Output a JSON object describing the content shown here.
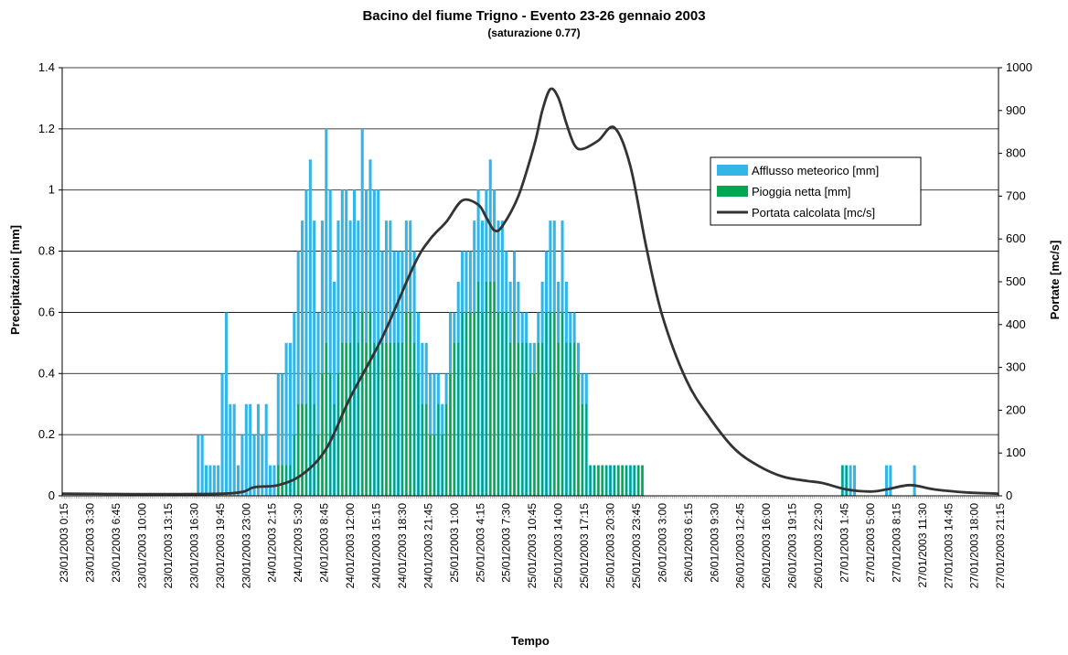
{
  "chart_data": {
    "type": "bar",
    "title": "Bacino del fiume Trigno - Evento 23-26 gennaio 2003",
    "subtitle": "(saturazione 0.77)",
    "xlabel": "Tempo",
    "ylabel_left": "Precipitazioni [mm]",
    "ylabel_right": "Portate [mc/s]",
    "ylim_left": [
      0,
      1.4
    ],
    "yticks_left": [
      "0",
      "0.2",
      "0.4",
      "0.6",
      "0.8",
      "1",
      "1.2",
      "1.4"
    ],
    "ylim_right": [
      0,
      1000
    ],
    "yticks_right": [
      "0",
      "100",
      "200",
      "300",
      "400",
      "500",
      "600",
      "700",
      "800",
      "900",
      "1000"
    ],
    "xlim_hours": [
      0,
      117
    ],
    "x_tick_labels": [
      "23/01/2003 0:15",
      "23/01/2003 3:30",
      "23/01/2003 6:45",
      "23/01/2003 10:00",
      "23/01/2003 13:15",
      "23/01/2003 16:30",
      "23/01/2003 19:45",
      "23/01/2003 23:00",
      "24/01/2003 2:15",
      "24/01/2003 5:30",
      "24/01/2003 8:45",
      "24/01/2003 12:00",
      "24/01/2003 15:15",
      "24/01/2003 18:30",
      "24/01/2003 21:45",
      "25/01/2003 1:00",
      "25/01/2003 4:15",
      "25/01/2003 7:30",
      "25/01/2003 10:45",
      "25/01/2003 14:00",
      "25/01/2003 17:15",
      "25/01/2003 20:30",
      "25/01/2003 23:45",
      "26/01/2003 3:00",
      "26/01/2003 6:15",
      "26/01/2003 9:30",
      "26/01/2003 12:45",
      "26/01/2003 16:00",
      "26/01/2003 19:15",
      "26/01/2003 22:30",
      "27/01/2003 1:45",
      "27/01/2003 5:00",
      "27/01/2003 8:15",
      "27/01/2003 11:30",
      "27/01/2003 14:45",
      "27/01/2003 18:00",
      "27/01/2003 21:15"
    ],
    "grid": true,
    "legend_position": "right",
    "colors": {
      "afflusso": "#33b5e5",
      "pioggia": "#00a651",
      "portata": "#333333",
      "grid": "#000000"
    },
    "series": [
      {
        "name": "Afflusso meteorico [mm]",
        "type": "bar",
        "axis": "left",
        "x_hours": [
          17,
          17.5,
          18,
          18.5,
          19,
          19.5,
          20,
          20.5,
          21,
          21.5,
          22,
          22.5,
          23,
          23.5,
          24,
          24.5,
          25,
          25.5,
          26,
          26.5,
          27,
          27.5,
          28,
          28.5,
          29,
          29.5,
          30,
          30.5,
          31,
          31.5,
          32,
          32.5,
          33,
          33.5,
          34,
          34.5,
          35,
          35.5,
          36,
          36.5,
          37,
          37.5,
          38,
          38.5,
          39,
          39.5,
          40,
          40.5,
          41,
          41.5,
          42,
          42.5,
          43,
          43.5,
          44,
          44.5,
          45,
          45.5,
          46,
          46.5,
          47,
          47.5,
          48,
          48.5,
          49,
          49.5,
          50,
          50.5,
          51,
          51.5,
          52,
          52.5,
          53,
          53.5,
          54,
          54.5,
          55,
          55.5,
          56,
          56.5,
          57,
          57.5,
          58,
          58.5,
          59,
          59.5,
          60,
          60.5,
          61,
          61.5,
          62,
          62.5,
          63,
          63.5,
          64,
          64.5,
          65,
          65.5,
          66,
          66.5,
          67,
          67.5,
          68,
          68.5,
          69,
          69.5,
          70,
          70.5,
          71,
          71.5,
          72,
          72.5,
          97.5,
          98,
          98.5,
          99,
          103,
          103.5,
          106.5
        ],
        "values": [
          0.2,
          0.2,
          0.1,
          0.1,
          0.1,
          0.1,
          0.4,
          0.6,
          0.3,
          0.3,
          0.1,
          0.2,
          0.3,
          0.3,
          0.2,
          0.3,
          0.2,
          0.3,
          0.1,
          0.1,
          0.4,
          0.4,
          0.5,
          0.5,
          0.6,
          0.8,
          0.9,
          1,
          1.1,
          0.9,
          0.6,
          0.9,
          1.2,
          1,
          0.7,
          0.9,
          1,
          1,
          0.9,
          1,
          0.9,
          1.2,
          1,
          1.1,
          1,
          1,
          0.8,
          0.9,
          0.9,
          0.8,
          0.8,
          0.8,
          0.9,
          0.9,
          0.8,
          0.6,
          0.5,
          0.5,
          0.4,
          0.4,
          0.4,
          0.3,
          0.4,
          0.6,
          0.6,
          0.7,
          0.8,
          0.8,
          0.8,
          0.9,
          1,
          0.9,
          1,
          1.1,
          1,
          0.9,
          0.9,
          0.8,
          0.7,
          0.8,
          0.7,
          0.6,
          0.6,
          0.5,
          0.5,
          0.6,
          0.7,
          0.8,
          0.9,
          0.9,
          0.7,
          0.9,
          0.7,
          0.6,
          0.6,
          0.5,
          0.4,
          0.4,
          0.1,
          0.1,
          0.1,
          0.1,
          0.1,
          0.1,
          0.1,
          0.1,
          0.1,
          0.1,
          0.1,
          0.1,
          0.1,
          0.1,
          0.1,
          0.1,
          0.1,
          0.1,
          0.1,
          0.1,
          0.1
        ]
      },
      {
        "name": "Pioggia netta [mm]",
        "type": "bar",
        "axis": "left",
        "x_hours": [
          17,
          17.5,
          18,
          18.5,
          19,
          19.5,
          20,
          20.5,
          21,
          21.5,
          22,
          22.5,
          23,
          23.5,
          24,
          24.5,
          25,
          25.5,
          26,
          26.5,
          27,
          27.5,
          28,
          28.5,
          29,
          29.5,
          30,
          30.5,
          31,
          31.5,
          32,
          32.5,
          33,
          33.5,
          34,
          34.5,
          35,
          35.5,
          36,
          36.5,
          37,
          37.5,
          38,
          38.5,
          39,
          39.5,
          40,
          40.5,
          41,
          41.5,
          42,
          42.5,
          43,
          43.5,
          44,
          44.5,
          45,
          45.5,
          46,
          46.5,
          47,
          47.5,
          48,
          48.5,
          49,
          49.5,
          50,
          50.5,
          51,
          51.5,
          52,
          52.5,
          53,
          53.5,
          54,
          54.5,
          55,
          55.5,
          56,
          56.5,
          57,
          57.5,
          58,
          58.5,
          59,
          59.5,
          60,
          60.5,
          61,
          61.5,
          62,
          62.5,
          63,
          63.5,
          64,
          64.5,
          65,
          65.5,
          66,
          66.5,
          67,
          67.5,
          68,
          68.5,
          69,
          69.5,
          70,
          70.5,
          71,
          71.5,
          72,
          72.5,
          97.5,
          98,
          98.5,
          99,
          103,
          103.5,
          106.5
        ],
        "values": [
          0,
          0,
          0,
          0,
          0,
          0,
          0,
          0,
          0,
          0,
          0,
          0,
          0,
          0,
          0,
          0,
          0,
          0,
          0,
          0,
          0.1,
          0.1,
          0.1,
          0.1,
          0.2,
          0.3,
          0.3,
          0.3,
          0.4,
          0.3,
          0.2,
          0.4,
          0.5,
          0.4,
          0.3,
          0.4,
          0.5,
          0.5,
          0.5,
          0.6,
          0.5,
          0.6,
          0.5,
          0.6,
          0.5,
          0.5,
          0.5,
          0.5,
          0.5,
          0.5,
          0.5,
          0.5,
          0.6,
          0.6,
          0.5,
          0.4,
          0.3,
          0.3,
          0.2,
          0.2,
          0.3,
          0.2,
          0.3,
          0.4,
          0.5,
          0.5,
          0.6,
          0.6,
          0.6,
          0.6,
          0.7,
          0.6,
          0.7,
          0.7,
          0.7,
          0.6,
          0.6,
          0.6,
          0.5,
          0.6,
          0.5,
          0.5,
          0.5,
          0.4,
          0.4,
          0.5,
          0.5,
          0.6,
          0.6,
          0.6,
          0.5,
          0.6,
          0.5,
          0.5,
          0.5,
          0.4,
          0.3,
          0.3,
          0.1,
          0.1,
          0.1,
          0.1,
          0.1,
          0.1,
          0.1,
          0.1,
          0.1,
          0.1,
          0.1,
          0.1,
          0.1,
          0.1,
          0.1,
          0.1,
          0,
          0,
          0,
          0,
          0
        ]
      },
      {
        "name": "Portata calcolata [mc/s]",
        "type": "line",
        "axis": "right",
        "x_hours": [
          0,
          20,
          24,
          27,
          30,
          33,
          36,
          40,
          44,
          46,
          48,
          50,
          52,
          53,
          54,
          55,
          57,
          59,
          60,
          61,
          62,
          63,
          64,
          65,
          67,
          69,
          71,
          73,
          75,
          78,
          81,
          84,
          87,
          90,
          93,
          95,
          98,
          101,
          103,
          106,
          109,
          113,
          117
        ],
        "values": [
          5,
          5,
          20,
          25,
          50,
          110,
          230,
          370,
          540,
          600,
          640,
          690,
          680,
          650,
          620,
          630,
          700,
          820,
          900,
          950,
          930,
          870,
          820,
          810,
          830,
          860,
          770,
          580,
          420,
          270,
          180,
          110,
          70,
          45,
          35,
          30,
          15,
          10,
          15,
          25,
          15,
          8,
          5
        ]
      }
    ]
  }
}
